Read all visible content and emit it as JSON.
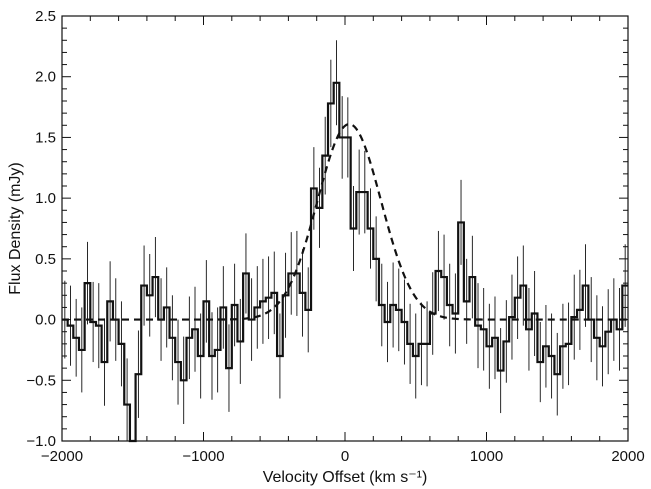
{
  "chart_data": {
    "type": "line",
    "title": "",
    "xlabel": "Velocity Offset (km s⁻¹)",
    "ylabel": "Flux Density (mJy)",
    "xlim": [
      -2000,
      2000
    ],
    "ylim": [
      -1.0,
      2.5
    ],
    "grid": false,
    "x_ticks": [
      {
        "value": -2000,
        "label": "−2000"
      },
      {
        "value": -1000,
        "label": "−1000"
      },
      {
        "value": 0,
        "label": "0"
      },
      {
        "value": 1000,
        "label": "1000"
      },
      {
        "value": 2000,
        "label": "2000"
      }
    ],
    "y_ticks": [
      {
        "value": -1.0,
        "label": "−1.0"
      },
      {
        "value": -0.5,
        "label": "−0.5"
      },
      {
        "value": 0.0,
        "label": "0.0"
      },
      {
        "value": 0.5,
        "label": "0.5"
      },
      {
        "value": 1.0,
        "label": "1.0"
      },
      {
        "value": 1.5,
        "label": "1.5"
      },
      {
        "value": 2.0,
        "label": "2.0"
      },
      {
        "value": 2.5,
        "label": "2.5"
      }
    ],
    "bin_width": 40,
    "series": [
      {
        "style": "histogram",
        "color": "#111111",
        "x": [
          -2000,
          -1960,
          -1920,
          -1880,
          -1840,
          -1800,
          -1760,
          -1720,
          -1680,
          -1640,
          -1600,
          -1560,
          -1520,
          -1480,
          -1440,
          -1400,
          -1360,
          -1320,
          -1280,
          -1240,
          -1200,
          -1160,
          -1120,
          -1080,
          -1040,
          -1000,
          -960,
          -920,
          -880,
          -840,
          -800,
          -760,
          -720,
          -680,
          -640,
          -600,
          -560,
          -520,
          -480,
          -440,
          -400,
          -360,
          -320,
          -280,
          -240,
          -200,
          -160,
          -120,
          -80,
          -40,
          0,
          40,
          80,
          120,
          160,
          200,
          240,
          280,
          320,
          360,
          400,
          440,
          480,
          520,
          560,
          600,
          640,
          680,
          720,
          760,
          800,
          840,
          880,
          920,
          960,
          1000,
          1040,
          1080,
          1120,
          1160,
          1200,
          1240,
          1280,
          1320,
          1360,
          1400,
          1440,
          1480,
          1520,
          1560,
          1600,
          1640,
          1680,
          1720,
          1760,
          1800,
          1840,
          1880,
          1920,
          1960
        ],
        "y": [
          0.0,
          -0.05,
          -0.15,
          -0.25,
          0.3,
          -0.02,
          -0.05,
          -0.35,
          0.15,
          0.0,
          -0.2,
          -0.7,
          -1.4,
          -0.45,
          0.28,
          0.2,
          0.35,
          0.0,
          0.1,
          -0.15,
          -0.35,
          -0.5,
          -0.15,
          -0.08,
          -0.3,
          0.15,
          -0.3,
          -0.25,
          0.1,
          -0.4,
          0.12,
          -0.18,
          0.38,
          0.0,
          0.1,
          0.15,
          0.18,
          0.22,
          -0.3,
          0.2,
          0.38,
          0.38,
          0.22,
          0.08,
          1.08,
          0.92,
          1.35,
          1.78,
          1.95,
          1.5,
          1.5,
          0.75,
          1.05,
          1.05,
          0.75,
          0.5,
          0.12,
          -0.02,
          0.12,
          0.08,
          -0.02,
          -0.2,
          -0.3,
          -0.2,
          -0.2,
          0.05,
          0.4,
          0.35,
          0.12,
          0.05,
          0.8,
          0.15,
          0.35,
          -0.05,
          -0.08,
          -0.22,
          -0.15,
          -0.42,
          -0.18,
          0.02,
          0.18,
          0.28,
          -0.08,
          0.05,
          -0.35,
          -0.22,
          -0.3,
          -0.45,
          -0.22,
          -0.2,
          0.02,
          0.08,
          0.28,
          0.0,
          -0.15,
          -0.22,
          -0.1,
          0.0,
          -0.08,
          0.28
        ],
        "yerr": [
          0.32,
          0.33,
          0.32,
          0.35,
          0.34,
          0.33,
          0.35,
          0.36,
          0.33,
          0.34,
          0.35,
          0.38,
          0.4,
          0.36,
          0.33,
          0.34,
          0.33,
          0.34,
          0.33,
          0.35,
          0.35,
          0.36,
          0.34,
          0.35,
          0.35,
          0.34,
          0.36,
          0.35,
          0.34,
          0.36,
          0.34,
          0.35,
          0.33,
          0.34,
          0.34,
          0.35,
          0.34,
          0.34,
          0.35,
          0.35,
          0.34,
          0.35,
          0.36,
          0.35,
          0.34,
          0.33,
          0.32,
          0.36,
          0.35,
          0.34,
          0.33,
          0.35,
          0.35,
          0.34,
          0.33,
          0.35,
          0.34,
          0.33,
          0.35,
          0.34,
          0.35,
          0.33,
          0.35,
          0.34,
          0.35,
          0.34,
          0.33,
          0.35,
          0.34,
          0.33,
          0.35,
          0.35,
          0.34,
          0.35,
          0.34,
          0.35,
          0.34,
          0.35,
          0.34,
          0.35,
          0.34,
          0.33,
          0.34,
          0.35,
          0.33,
          0.34,
          0.35,
          0.34,
          0.35,
          0.34,
          0.35,
          0.33,
          0.34,
          0.35,
          0.35,
          0.33,
          0.35,
          0.34,
          0.34,
          0.34
        ]
      },
      {
        "style": "dashed",
        "color": "#111111",
        "model": "gaussian",
        "amplitude": 1.61,
        "center": 30,
        "fwhm": 530,
        "baseline": 0.0
      }
    ]
  }
}
